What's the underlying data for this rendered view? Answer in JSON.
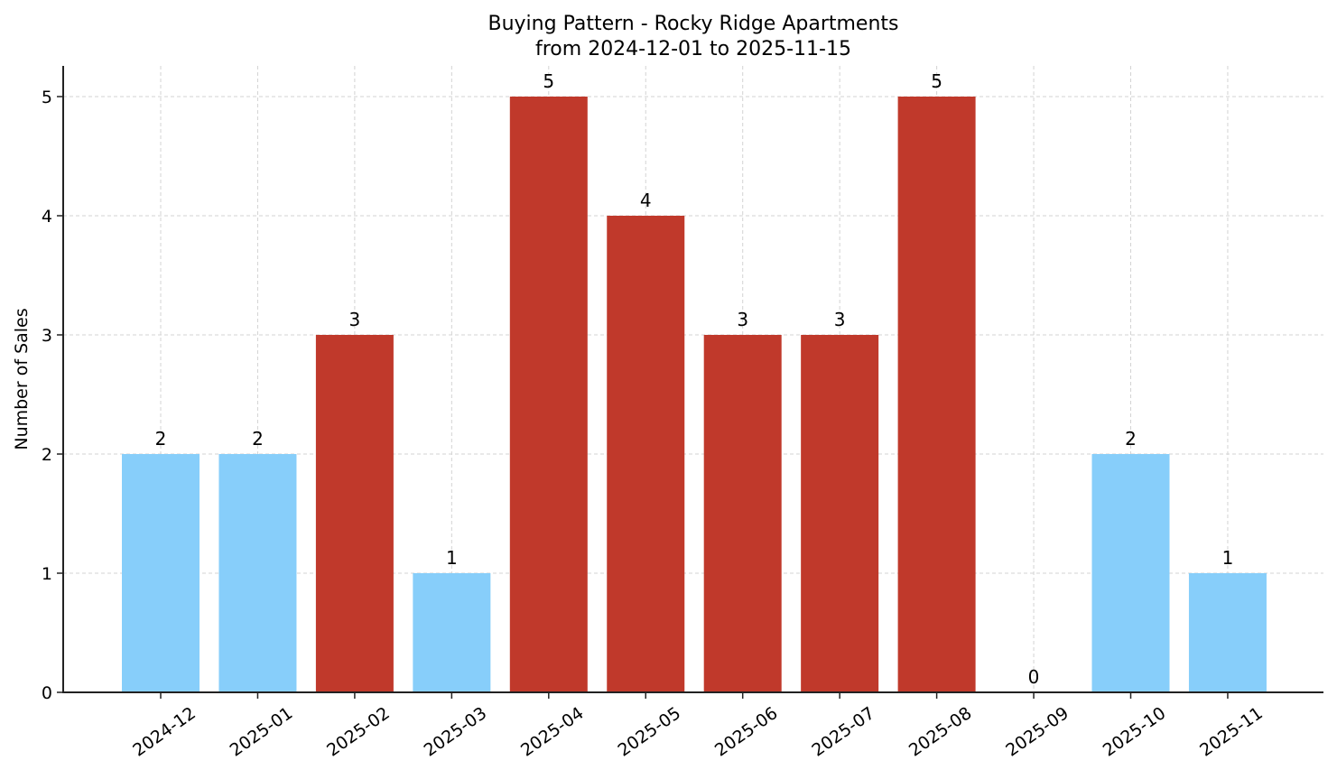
{
  "chart_data": {
    "type": "bar",
    "title": "Buying Pattern - Rocky Ridge Apartments",
    "subtitle": "from 2024-12-01 to 2025-11-15",
    "xlabel": "",
    "ylabel": "Number of Sales",
    "categories": [
      "2024-12",
      "2025-01",
      "2025-02",
      "2025-03",
      "2025-04",
      "2025-05",
      "2025-06",
      "2025-07",
      "2025-08",
      "2025-09",
      "2025-10",
      "2025-11"
    ],
    "values": [
      2,
      2,
      3,
      1,
      5,
      4,
      3,
      3,
      5,
      0,
      2,
      1
    ],
    "bar_colors": [
      "#87cefa",
      "#87cefa",
      "#c0392b",
      "#87cefa",
      "#c0392b",
      "#c0392b",
      "#c0392b",
      "#c0392b",
      "#c0392b",
      "#87cefa",
      "#87cefa",
      "#87cefa"
    ],
    "data_labels": [
      "2",
      "2",
      "3",
      "1",
      "5",
      "4",
      "3",
      "3",
      "5",
      "0",
      "2",
      "1"
    ],
    "yticks": [
      0,
      1,
      2,
      3,
      4,
      5
    ],
    "ylim": [
      0,
      5.25
    ],
    "grid": true,
    "legend": null,
    "colors": {
      "low": "#87cefa",
      "high": "#c0392b",
      "axis": "#222222",
      "grid": "#d3d3d3"
    }
  }
}
